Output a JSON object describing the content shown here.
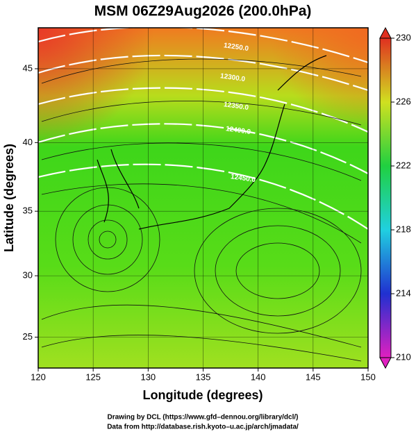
{
  "chart_data": {
    "type": "map",
    "title": "MSM 06Z29Aug2026 (200.0hPa)",
    "x_label": "Longitude (degrees)",
    "y_label": "Latitude  (degrees)",
    "projection": "mercator",
    "xlim": [
      120,
      150
    ],
    "xticks": [
      120,
      125,
      130,
      135,
      140,
      145,
      150
    ],
    "ylim": [
      22.4,
      47.6
    ],
    "yticks": [
      25,
      30,
      35,
      40,
      45
    ],
    "grid": true,
    "colorbar": {
      "lim": [
        210,
        230
      ],
      "ticks": [
        210,
        214,
        218,
        222,
        226,
        230
      ]
    },
    "contour_labels": [
      "12250.0",
      "12300.0",
      "12350.0",
      "12400.0",
      "12450.0"
    ],
    "credits": [
      "Drawing by DCL (https://www.gfd–dennou.org/library/dcl/)",
      "Data from http://database.rish.kyoto–u.ac.jp/arch/jmadata/"
    ]
  }
}
